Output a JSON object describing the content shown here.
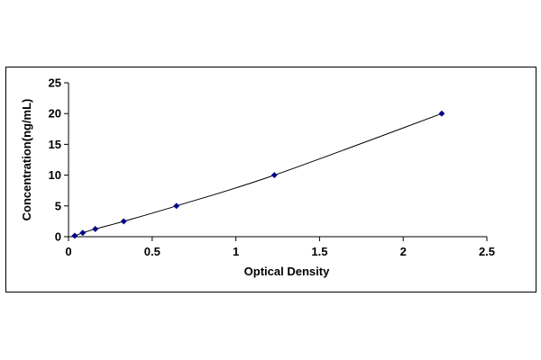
{
  "chart_data": {
    "type": "line",
    "title": "",
    "xlabel": "Optical Density",
    "ylabel": "Concentration(ng/mL)",
    "xlim": [
      0,
      2.5
    ],
    "ylim": [
      0,
      25
    ],
    "x_ticks": [
      "0",
      "0.5",
      "1",
      "1.5",
      "2",
      "2.5"
    ],
    "y_ticks": [
      "0",
      "5",
      "10",
      "15",
      "20",
      "25"
    ],
    "x_tick_values": [
      0,
      0.5,
      1,
      1.5,
      2,
      2.5
    ],
    "y_tick_values": [
      0,
      5,
      10,
      15,
      20,
      25
    ],
    "grid": false,
    "legend": "none",
    "series": [
      {
        "marker": "diamond",
        "color": "#00008B",
        "line_color": "#000000",
        "x": [
          0.037,
          0.085,
          0.16,
          0.33,
          0.645,
          1.23,
          2.23
        ],
        "y": [
          0.156,
          0.625,
          1.25,
          2.5,
          5,
          10,
          20
        ]
      }
    ]
  }
}
